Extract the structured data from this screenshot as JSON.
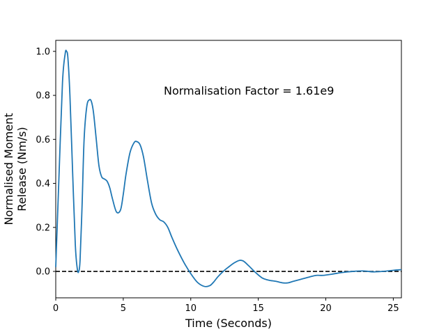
{
  "chart_data": {
    "type": "line",
    "xlabel": "Time (Seconds)",
    "ylabel_lines": [
      "Normalised Moment",
      "Release (Nm/s)"
    ],
    "annotation": "Normalisation Factor = 1.61e9",
    "xlim": [
      0,
      25.6
    ],
    "ylim": [
      -0.12,
      1.05
    ],
    "xticks": [
      0,
      5,
      10,
      15,
      20,
      25
    ],
    "yticks": [
      0.0,
      0.2,
      0.4,
      0.6,
      0.8,
      1.0
    ],
    "xtick_labels": [
      "0",
      "5",
      "10",
      "15",
      "20",
      "25"
    ],
    "ytick_labels": [
      "0.0",
      "0.2",
      "0.4",
      "0.6",
      "0.8",
      "1.0"
    ],
    "reference_line": {
      "y": 0.0,
      "style": "dashed",
      "color": "#000000"
    },
    "grid": false,
    "series": [
      {
        "color": "#1f77b4",
        "x": [
          0,
          0.25,
          0.5,
          0.7,
          0.8,
          0.9,
          1.05,
          1.25,
          1.45,
          1.6,
          1.7,
          1.8,
          1.95,
          2.1,
          2.3,
          2.5,
          2.65,
          2.8,
          3.0,
          3.2,
          3.4,
          3.6,
          3.8,
          4.0,
          4.2,
          4.5,
          4.8,
          5.0,
          5.2,
          5.5,
          5.8,
          6.0,
          6.25,
          6.5,
          6.8,
          7.1,
          7.4,
          7.7,
          8.0,
          8.3,
          8.6,
          9.0,
          9.5,
          10.0,
          10.5,
          11.0,
          11.4,
          11.7,
          12.0,
          12.4,
          12.8,
          13.2,
          13.6,
          13.9,
          14.3,
          14.8,
          15.3,
          15.8,
          16.3,
          16.8,
          17.2,
          17.6,
          18.2,
          18.8,
          19.3,
          19.8,
          20.5,
          21.2,
          22.0,
          22.8,
          23.5,
          24.2,
          25.0,
          25.6
        ],
        "y": [
          0.02,
          0.45,
          0.86,
          0.99,
          1.0,
          0.97,
          0.8,
          0.45,
          0.12,
          0.01,
          0.0,
          0.05,
          0.3,
          0.6,
          0.75,
          0.78,
          0.77,
          0.72,
          0.6,
          0.48,
          0.43,
          0.42,
          0.41,
          0.38,
          0.33,
          0.27,
          0.28,
          0.35,
          0.44,
          0.54,
          0.585,
          0.59,
          0.575,
          0.52,
          0.41,
          0.31,
          0.26,
          0.235,
          0.225,
          0.2,
          0.155,
          0.1,
          0.04,
          -0.01,
          -0.05,
          -0.068,
          -0.065,
          -0.048,
          -0.025,
          0.0,
          0.02,
          0.038,
          0.05,
          0.047,
          0.025,
          -0.005,
          -0.03,
          -0.04,
          -0.045,
          -0.052,
          -0.052,
          -0.045,
          -0.035,
          -0.025,
          -0.018,
          -0.018,
          -0.012,
          -0.005,
          0.0,
          0.002,
          -0.002,
          0.0,
          0.005,
          0.008
        ]
      }
    ]
  }
}
